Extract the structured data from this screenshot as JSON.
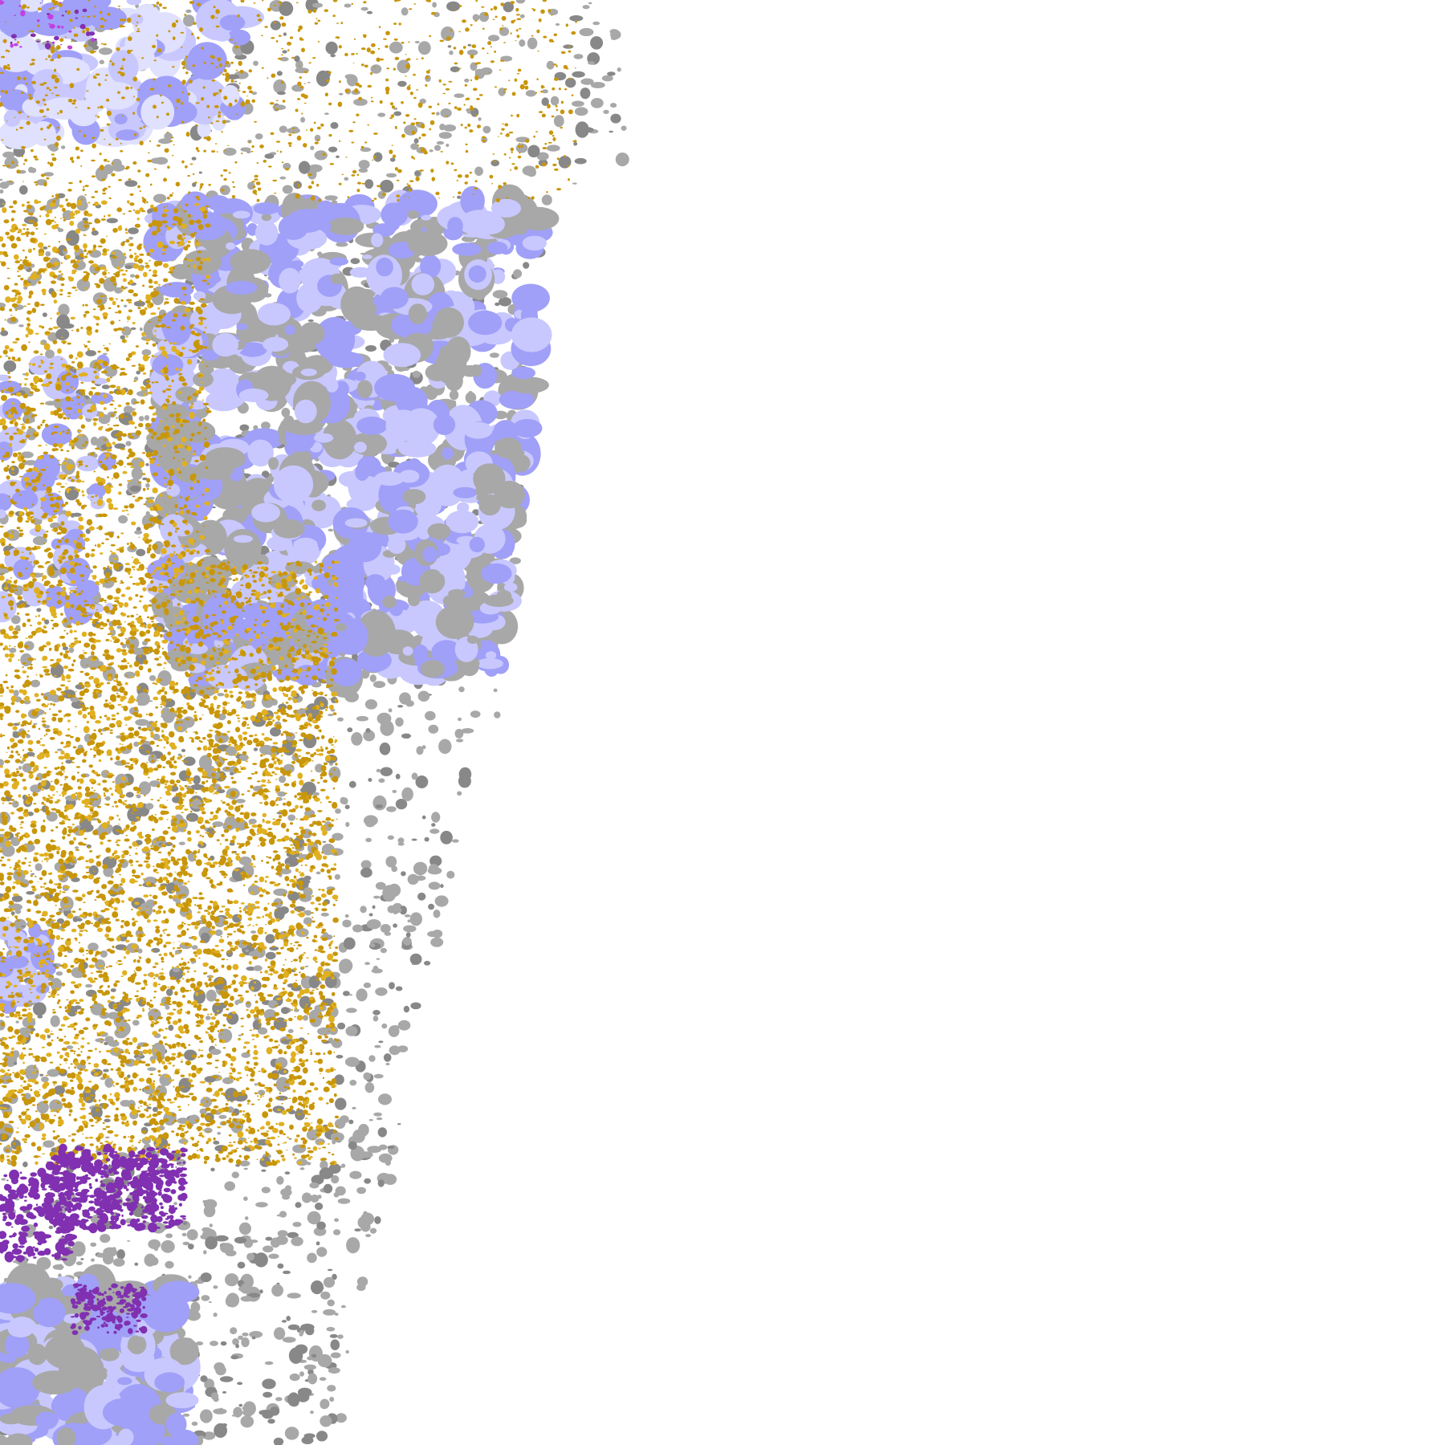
{
  "map": {
    "background": "#ffffff",
    "palette": {
      "gold": "#c8960a",
      "yellow": "#e0b020",
      "lavender": "#a0a0f8",
      "light_lavender": "#c8c8ff",
      "pale_lavender": "#e0e0ff",
      "gray": "#a8a8a8",
      "dark_gray": "#888888",
      "purple": "#8030b0",
      "magenta": "#c040e0"
    }
  }
}
